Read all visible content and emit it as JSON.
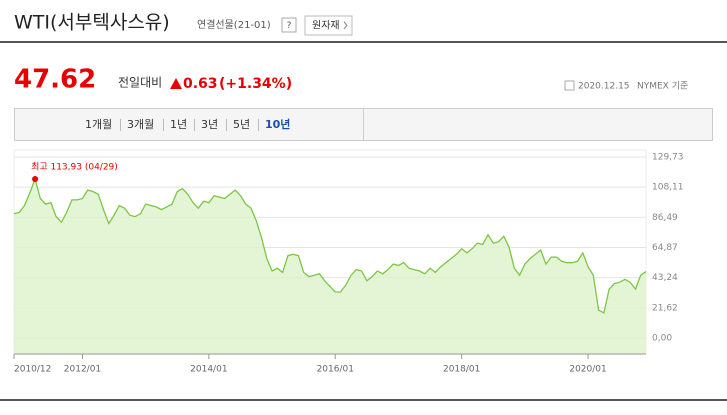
{
  "header": {
    "title": "WTI(서부텍사스유)",
    "subtitle": "연결선물(21-01)",
    "help": "?",
    "button": "원자재"
  },
  "quote": {
    "price": "47.62",
    "change_label": "전일대비",
    "change": "0.63",
    "change_pct": "(+1.34%)",
    "date": "2020.12.15",
    "source": "NYMEX 기준"
  },
  "tabs": {
    "items": [
      "1개월",
      "3개월",
      "1년",
      "3년",
      "5년",
      "10년"
    ],
    "selected": 5
  },
  "chart_data": {
    "type": "line",
    "area": true,
    "color": "#7cc644",
    "fill": "#dcf2cb",
    "annotation": {
      "label": "최고 113,93 (04/29)",
      "value": 113.93,
      "color": "#e60000"
    },
    "x": [
      "2010/12",
      "2011/01",
      "2011/02",
      "2011/03",
      "2011/04",
      "2011/05",
      "2011/06",
      "2011/07",
      "2011/08",
      "2011/09",
      "2011/10",
      "2011/11",
      "2011/12",
      "2012/01",
      "2012/02",
      "2012/03",
      "2012/04",
      "2012/05",
      "2012/06",
      "2012/07",
      "2012/08",
      "2012/09",
      "2012/10",
      "2012/11",
      "2012/12",
      "2013/01",
      "2013/02",
      "2013/03",
      "2013/04",
      "2013/05",
      "2013/06",
      "2013/07",
      "2013/08",
      "2013/09",
      "2013/10",
      "2013/11",
      "2013/12",
      "2014/01",
      "2014/02",
      "2014/03",
      "2014/04",
      "2014/05",
      "2014/06",
      "2014/07",
      "2014/08",
      "2014/09",
      "2014/10",
      "2014/11",
      "2014/12",
      "2015/01",
      "2015/02",
      "2015/03",
      "2015/04",
      "2015/05",
      "2015/06",
      "2015/07",
      "2015/08",
      "2015/09",
      "2015/10",
      "2015/11",
      "2015/12",
      "2016/01",
      "2016/02",
      "2016/03",
      "2016/04",
      "2016/05",
      "2016/06",
      "2016/07",
      "2016/08",
      "2016/09",
      "2016/10",
      "2016/11",
      "2016/12",
      "2017/01",
      "2017/02",
      "2017/03",
      "2017/04",
      "2017/05",
      "2017/06",
      "2017/07",
      "2017/08",
      "2017/09",
      "2017/10",
      "2017/11",
      "2017/12",
      "2018/01",
      "2018/02",
      "2018/03",
      "2018/04",
      "2018/05",
      "2018/06",
      "2018/07",
      "2018/08",
      "2018/09",
      "2018/10",
      "2018/11",
      "2018/12",
      "2019/01",
      "2019/02",
      "2019/03",
      "2019/04",
      "2019/05",
      "2019/06",
      "2019/07",
      "2019/08",
      "2019/09",
      "2019/10",
      "2019/11",
      "2019/12",
      "2020/01",
      "2020/02",
      "2020/03",
      "2020/04",
      "2020/05",
      "2020/06",
      "2020/07",
      "2020/08",
      "2020/09",
      "2020/10",
      "2020/11",
      "2020/12"
    ],
    "series": [
      {
        "name": "WTI",
        "values": [
          89,
          90,
          95,
          104,
          113.93,
          100,
          96,
          97,
          87,
          83,
          90,
          99,
          99,
          100,
          106,
          105,
          103,
          92,
          82,
          88,
          95,
          93,
          88,
          87,
          89,
          96,
          95,
          94,
          92,
          94,
          96,
          105,
          107,
          103,
          97,
          93,
          98,
          97,
          102,
          101,
          100,
          103,
          106,
          102,
          96,
          93,
          84,
          72,
          57,
          48,
          50,
          47,
          59,
          60,
          59,
          47,
          44,
          45,
          46,
          41,
          37,
          33,
          33,
          38,
          45,
          49,
          48,
          41,
          44,
          48,
          46,
          49,
          53,
          52,
          54,
          50,
          49,
          48,
          46,
          50,
          47,
          51,
          54,
          57,
          60,
          64,
          61,
          64,
          68,
          67,
          74,
          68,
          69,
          73,
          65,
          50,
          45,
          53,
          57,
          60,
          63,
          53,
          58,
          58,
          55,
          54,
          54,
          55,
          61,
          51,
          45,
          20,
          18,
          35,
          39,
          40,
          42,
          40,
          35,
          45,
          47.62
        ]
      }
    ],
    "xticks": [
      "2010/12",
      "2012/01",
      "2014/01",
      "2016/01",
      "2018/01",
      "2020/01"
    ],
    "ylim": [
      -11.47,
      134.75
    ],
    "yticks": [
      {
        "value": 0,
        "label": "0,00"
      },
      {
        "value": 21.62,
        "label": "21,62"
      },
      {
        "value": 43.24,
        "label": "43,24"
      },
      {
        "value": 64.87,
        "label": "64,87"
      },
      {
        "value": 86.49,
        "label": "86,49"
      },
      {
        "value": 108.11,
        "label": "108,11"
      },
      {
        "value": 129.73,
        "label": "129,73"
      }
    ],
    "grid": true
  }
}
